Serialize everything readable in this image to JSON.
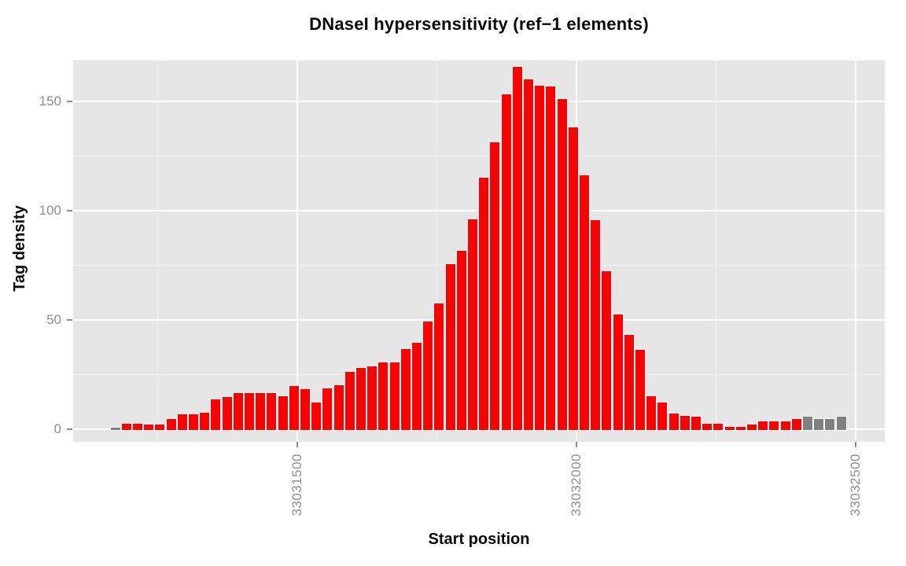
{
  "title": "DNaseI hypersensitivity (ref−1 elements)",
  "x_axis": {
    "label": "Start position",
    "ticks": [
      {
        "bp": 33031500,
        "label": "33031500"
      },
      {
        "bp": 33032000,
        "label": "33032000"
      },
      {
        "bp": 33032500,
        "label": "33032500"
      }
    ],
    "minor_bp": [
      33031250,
      33031750,
      33032250
    ]
  },
  "y_axis": {
    "label": "Tag density",
    "ticks": [
      {
        "value": 0,
        "label": "0"
      },
      {
        "value": 50,
        "label": "50"
      },
      {
        "value": 100,
        "label": "100"
      },
      {
        "value": 150,
        "label": "150"
      }
    ],
    "minor": [
      25,
      75,
      125
    ]
  },
  "colors": {
    "bar_red": "#FF0000",
    "bar_gray": "#808080",
    "bar_outline": "#FFFFFF",
    "panel_bg": "#E6E6E6",
    "grid_major": "#FFFFFF",
    "grid_minor": "#F2F2F2",
    "tick_text": "#8E8E8E",
    "tick_mark": "#8E8E8E",
    "text": "#0A0A0A"
  },
  "chart_data": {
    "type": "bar",
    "title": "DNaseI hypersensitivity (ref−1 elements)",
    "xlabel": "Start position",
    "ylabel": "Tag density",
    "x_bin_start": 33031160,
    "bin_width_bp": 20,
    "xlim": [
      33031095,
      33032550
    ],
    "ylim": [
      0,
      168
    ],
    "grid": "on",
    "legend": "none",
    "values": [
      0.5,
      2.5,
      2.5,
      2,
      2,
      4.5,
      6.5,
      6.5,
      7.5,
      13.5,
      14.5,
      16.5,
      16.5,
      16.5,
      16.5,
      15,
      19.5,
      18,
      12,
      18.5,
      20,
      26,
      28,
      28.5,
      30.5,
      30.5,
      36.5,
      39.5,
      49,
      57.5,
      75.5,
      81.5,
      96,
      115,
      131,
      153,
      165.5,
      160,
      157,
      156.5,
      151,
      138,
      116,
      95.5,
      72,
      52.5,
      43,
      36,
      15,
      12,
      7,
      6,
      5.5,
      2.5,
      2.5,
      1,
      1,
      2,
      3.5,
      3.5,
      3.5,
      4.5,
      5.5,
      4.5,
      4.5,
      5.5
    ],
    "gray_bar_indices": [
      0,
      62,
      63,
      64,
      65
    ]
  }
}
